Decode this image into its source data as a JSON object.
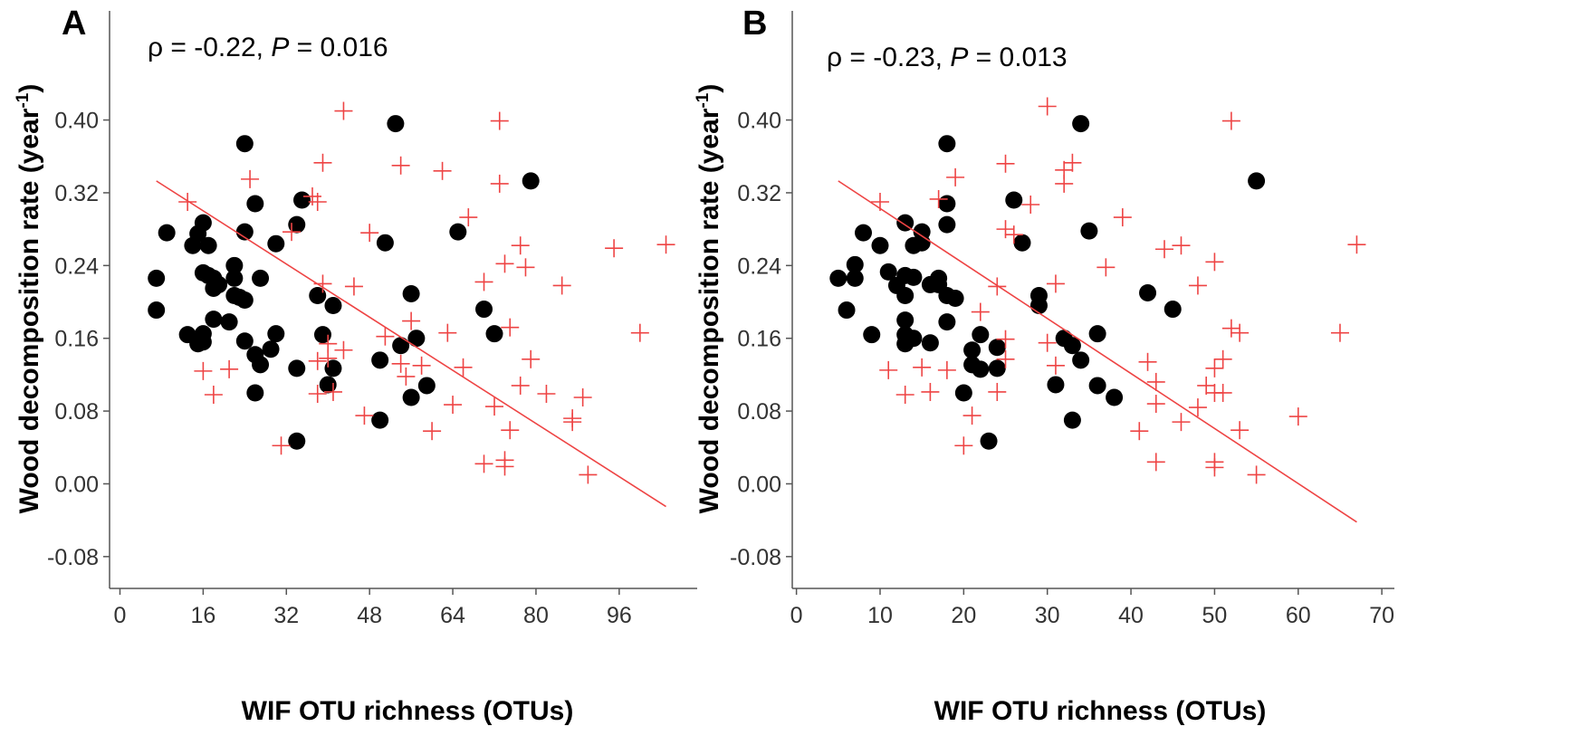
{
  "chart_data": [
    {
      "panel": "A",
      "type": "scatter",
      "xlabel": "WIF OTU richness (OTUs)",
      "ylabel": "Wood decomposition rate (year",
      "ylabel_sup": "-1",
      "ylabel_end": ")",
      "annotation": {
        "rho": "ρ = -0.22, ",
        "p_symbol": "P",
        "p_value": " = 0.016"
      },
      "xlim": [
        -2,
        111
      ],
      "ylim": [
        -0.115,
        0.52
      ],
      "xticks": [
        0,
        16,
        32,
        48,
        64,
        80,
        96
      ],
      "yticks": [
        -0.08,
        0.0,
        0.08,
        0.16,
        0.24,
        0.32,
        0.4
      ],
      "ytick_labels": [
        "-0.08",
        "0.00",
        "0.08",
        "0.16",
        "0.24",
        "0.32",
        "0.40"
      ],
      "fit_line": {
        "x": [
          7,
          105
        ],
        "y": [
          0.333,
          -0.025
        ],
        "color": "#ee4444"
      },
      "series": [
        {
          "name": "black circles",
          "marker": "circle",
          "color": "#000000",
          "points": [
            [
              7,
              0.226
            ],
            [
              7,
              0.191
            ],
            [
              9,
              0.276
            ],
            [
              13,
              0.164
            ],
            [
              14,
              0.262
            ],
            [
              15,
              0.275
            ],
            [
              15,
              0.154
            ],
            [
              16,
              0.165
            ],
            [
              16,
              0.287
            ],
            [
              16,
              0.232
            ],
            [
              16,
              0.156
            ],
            [
              17,
              0.262
            ],
            [
              17,
              0.229
            ],
            [
              18,
              0.181
            ],
            [
              18,
              0.226
            ],
            [
              18,
              0.215
            ],
            [
              19,
              0.219
            ],
            [
              21,
              0.178
            ],
            [
              22,
              0.24
            ],
            [
              22,
              0.226
            ],
            [
              22,
              0.207
            ],
            [
              23,
              0.205
            ],
            [
              24,
              0.202
            ],
            [
              24,
              0.374
            ],
            [
              24,
              0.277
            ],
            [
              24,
              0.157
            ],
            [
              26,
              0.308
            ],
            [
              26,
              0.142
            ],
            [
              26,
              0.1
            ],
            [
              27,
              0.226
            ],
            [
              27,
              0.131
            ],
            [
              29,
              0.148
            ],
            [
              30,
              0.264
            ],
            [
              30,
              0.165
            ],
            [
              34,
              0.285
            ],
            [
              34,
              0.127
            ],
            [
              34,
              0.047
            ],
            [
              35,
              0.312
            ],
            [
              38,
              0.207
            ],
            [
              39,
              0.164
            ],
            [
              40,
              0.109
            ],
            [
              41,
              0.196
            ],
            [
              41,
              0.127
            ],
            [
              50,
              0.136
            ],
            [
              50,
              0.07
            ],
            [
              51,
              0.265
            ],
            [
              53,
              0.396
            ],
            [
              54,
              0.152
            ],
            [
              56,
              0.209
            ],
            [
              56,
              0.095
            ],
            [
              57,
              0.16
            ],
            [
              59,
              0.108
            ],
            [
              65,
              0.277
            ],
            [
              70,
              0.192
            ],
            [
              72,
              0.165
            ],
            [
              79,
              0.333
            ]
          ]
        },
        {
          "name": "red plus",
          "marker": "plus",
          "color": "#ee4444",
          "points": [
            [
              13,
              0.31
            ],
            [
              16,
              0.124
            ],
            [
              18,
              0.098
            ],
            [
              21,
              0.126
            ],
            [
              25,
              0.335
            ],
            [
              31,
              0.042
            ],
            [
              33,
              0.277
            ],
            [
              37,
              0.316
            ],
            [
              38,
              0.31
            ],
            [
              38,
              0.135
            ],
            [
              38,
              0.099
            ],
            [
              39,
              0.353
            ],
            [
              39,
              0.22
            ],
            [
              40,
              0.154
            ],
            [
              40,
              0.138
            ],
            [
              41,
              0.101
            ],
            [
              43,
              0.147
            ],
            [
              43,
              0.41
            ],
            [
              45,
              0.217
            ],
            [
              47,
              0.075
            ],
            [
              48,
              0.276
            ],
            [
              51,
              0.162
            ],
            [
              54,
              0.35
            ],
            [
              54,
              0.132
            ],
            [
              55,
              0.118
            ],
            [
              56,
              0.179
            ],
            [
              58,
              0.13
            ],
            [
              60,
              0.058
            ],
            [
              62,
              0.344
            ],
            [
              63,
              0.166
            ],
            [
              64,
              0.087
            ],
            [
              66,
              0.128
            ],
            [
              67,
              0.293
            ],
            [
              70,
              0.022
            ],
            [
              70,
              0.222
            ],
            [
              72,
              0.085
            ],
            [
              73,
              0.33
            ],
            [
              73,
              0.399
            ],
            [
              74,
              0.026
            ],
            [
              74,
              0.242
            ],
            [
              74,
              0.019
            ],
            [
              75,
              0.172
            ],
            [
              75,
              0.059
            ],
            [
              77,
              0.262
            ],
            [
              77,
              0.108
            ],
            [
              78,
              0.238
            ],
            [
              79,
              0.137
            ],
            [
              82,
              0.099
            ],
            [
              85,
              0.218
            ],
            [
              87,
              0.072
            ],
            [
              87,
              0.068
            ],
            [
              89,
              0.095
            ],
            [
              90,
              0.01
            ],
            [
              95,
              0.259
            ],
            [
              100,
              0.166
            ],
            [
              105,
              0.263
            ]
          ]
        }
      ]
    },
    {
      "panel": "B",
      "type": "scatter",
      "xlabel": "WIF OTU richness (OTUs)",
      "ylabel": "Wood decomposition rate (year",
      "ylabel_sup": "-1",
      "ylabel_end": ")",
      "annotation": {
        "rho": "ρ = -0.23, ",
        "p_symbol": "P",
        "p_value": " = 0.013"
      },
      "xlim": [
        -0.5,
        71.5
      ],
      "ylim": [
        -0.115,
        0.52
      ],
      "xticks": [
        0,
        10,
        20,
        30,
        40,
        50,
        60,
        70
      ],
      "yticks": [
        -0.08,
        0.0,
        0.08,
        0.16,
        0.24,
        0.32,
        0.4
      ],
      "ytick_labels": [
        "-0.08",
        "0.00",
        "0.08",
        "0.16",
        "0.24",
        "0.32",
        "0.40"
      ],
      "fit_line": {
        "x": [
          5,
          67
        ],
        "y": [
          0.333,
          -0.042
        ],
        "color": "#ee4444"
      },
      "series": [
        {
          "name": "black circles",
          "marker": "circle",
          "color": "#000000",
          "points": [
            [
              5,
              0.226
            ],
            [
              6,
              0.191
            ],
            [
              7,
              0.241
            ],
            [
              7,
              0.226
            ],
            [
              8,
              0.276
            ],
            [
              9,
              0.164
            ],
            [
              10,
              0.262
            ],
            [
              11,
              0.233
            ],
            [
              12,
              0.218
            ],
            [
              13,
              0.287
            ],
            [
              13,
              0.229
            ],
            [
              13,
              0.207
            ],
            [
              13,
              0.18
            ],
            [
              13,
              0.164
            ],
            [
              13,
              0.154
            ],
            [
              14,
              0.227
            ],
            [
              14,
              0.262
            ],
            [
              14,
              0.16
            ],
            [
              15,
              0.277
            ],
            [
              15,
              0.265
            ],
            [
              16,
              0.219
            ],
            [
              16,
              0.155
            ],
            [
              17,
              0.226
            ],
            [
              17,
              0.219
            ],
            [
              18,
              0.374
            ],
            [
              18,
              0.308
            ],
            [
              18,
              0.285
            ],
            [
              18,
              0.207
            ],
            [
              18,
              0.178
            ],
            [
              19,
              0.204
            ],
            [
              20,
              0.1
            ],
            [
              21,
              0.147
            ],
            [
              21,
              0.131
            ],
            [
              22,
              0.164
            ],
            [
              22,
              0.126
            ],
            [
              23,
              0.047
            ],
            [
              24,
              0.15
            ],
            [
              24,
              0.127
            ],
            [
              26,
              0.312
            ],
            [
              27,
              0.265
            ],
            [
              29,
              0.207
            ],
            [
              29,
              0.196
            ],
            [
              31,
              0.109
            ],
            [
              32,
              0.16
            ],
            [
              33,
              0.152
            ],
            [
              33,
              0.07
            ],
            [
              34,
              0.396
            ],
            [
              34,
              0.136
            ],
            [
              35,
              0.278
            ],
            [
              36,
              0.108
            ],
            [
              36,
              0.165
            ],
            [
              38,
              0.095
            ],
            [
              42,
              0.21
            ],
            [
              45,
              0.192
            ],
            [
              55,
              0.333
            ]
          ]
        },
        {
          "name": "red plus",
          "marker": "plus",
          "color": "#ee4444",
          "points": [
            [
              10,
              0.31
            ],
            [
              11,
              0.125
            ],
            [
              13,
              0.098
            ],
            [
              15,
              0.128
            ],
            [
              16,
              0.101
            ],
            [
              17,
              0.313
            ],
            [
              18,
              0.125
            ],
            [
              19,
              0.337
            ],
            [
              20,
              0.042
            ],
            [
              21,
              0.075
            ],
            [
              22,
              0.189
            ],
            [
              24,
              0.217
            ],
            [
              24,
              0.101
            ],
            [
              25,
              0.352
            ],
            [
              25,
              0.28
            ],
            [
              25,
              0.137
            ],
            [
              25,
              0.159
            ],
            [
              26,
              0.274
            ],
            [
              28,
              0.307
            ],
            [
              30,
              0.415
            ],
            [
              30,
              0.155
            ],
            [
              31,
              0.22
            ],
            [
              31,
              0.13
            ],
            [
              32,
              0.345
            ],
            [
              32,
              0.33
            ],
            [
              33,
              0.353
            ],
            [
              37,
              0.238
            ],
            [
              39,
              0.293
            ],
            [
              41,
              0.058
            ],
            [
              42,
              0.134
            ],
            [
              43,
              0.112
            ],
            [
              43,
              0.088
            ],
            [
              43,
              0.024
            ],
            [
              44,
              0.258
            ],
            [
              46,
              0.262
            ],
            [
              46,
              0.068
            ],
            [
              48,
              0.218
            ],
            [
              48,
              0.084
            ],
            [
              49,
              0.108
            ],
            [
              50,
              0.127
            ],
            [
              50,
              0.024
            ],
            [
              50,
              0.018
            ],
            [
              50,
              0.244
            ],
            [
              50,
              0.1
            ],
            [
              51,
              0.137
            ],
            [
              51,
              0.1
            ],
            [
              52,
              0.399
            ],
            [
              52,
              0.171
            ],
            [
              53,
              0.166
            ],
            [
              53,
              0.059
            ],
            [
              55,
              0.01
            ],
            [
              60,
              0.074
            ],
            [
              65,
              0.166
            ],
            [
              67,
              0.263
            ]
          ]
        }
      ]
    }
  ]
}
